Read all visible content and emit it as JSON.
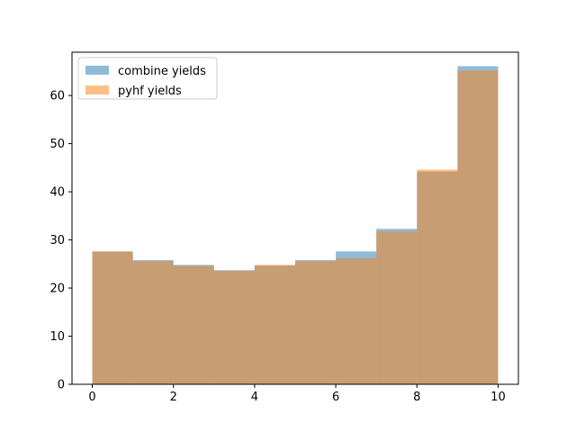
{
  "chart_data": {
    "type": "bar",
    "title": "",
    "xlabel": "",
    "ylabel": "",
    "xlim": [
      -0.5,
      10.5
    ],
    "ylim": [
      0,
      69
    ],
    "bin_edges": [
      0,
      1,
      2,
      3,
      4,
      5,
      6,
      7,
      8,
      9,
      10
    ],
    "xticks": [
      0,
      2,
      4,
      6,
      8,
      10
    ],
    "yticks": [
      0,
      10,
      20,
      30,
      40,
      50,
      60
    ],
    "grid": false,
    "legend_position": "upper-left",
    "series": [
      {
        "name": "combine yields",
        "color": "#1f77b4",
        "alpha": 0.5,
        "values": [
          27.6,
          25.8,
          24.8,
          23.7,
          24.7,
          25.8,
          27.6,
          32.3,
          44.2,
          66.1
        ]
      },
      {
        "name": "pyhf yields",
        "color": "#ff7f0e",
        "alpha": 0.5,
        "values": [
          27.6,
          25.6,
          24.6,
          23.6,
          24.8,
          25.6,
          26.2,
          31.8,
          44.6,
          65.2
        ]
      }
    ]
  }
}
